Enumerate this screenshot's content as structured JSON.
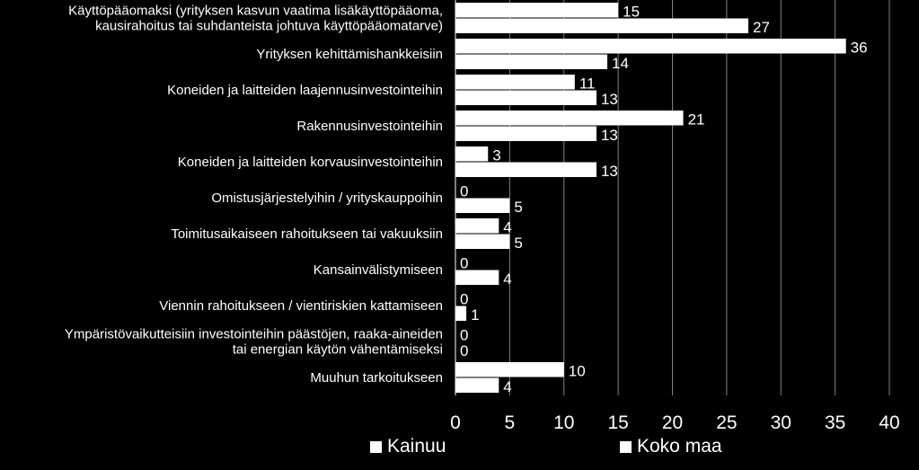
{
  "chart_data": {
    "type": "bar",
    "orientation": "horizontal",
    "categories": [
      "Käyttöpääomaksi (yrityksen kasvun vaatima lisäkäyttöpääoma,\nkausirahoitus tai suhdanteista johtuva käyttöpääomatarve)",
      "Yrityksen kehittämishankkeisiin",
      "Koneiden ja laitteiden laajennusinvestointeihin",
      "Rakennusinvestointeihin",
      "Koneiden ja laitteiden korvausinvestointeihin",
      "Omistusjärjestelyihin / yrityskauppoihin",
      "Toimitusaikaiseen rahoitukseen tai vakuuksiin",
      "Kansainvälistymiseen",
      "Viennin rahoitukseen / vientiriskien kattamiseen",
      "Ympäristövaikutteisiin investointeihin päästöjen, raaka-aineiden\ntai energian käytön vähentämiseksi",
      "Muuhun tarkoitukseen"
    ],
    "series": [
      {
        "name": "Kainuu",
        "values": [
          15,
          36,
          11,
          21,
          3,
          0,
          4,
          0,
          0,
          0,
          10
        ]
      },
      {
        "name": "Koko maa",
        "values": [
          27,
          14,
          13,
          13,
          13,
          5,
          5,
          4,
          1,
          0,
          4
        ]
      }
    ],
    "xlim": [
      0,
      40
    ],
    "xticks": [
      0,
      5,
      10,
      15,
      20,
      25,
      30,
      35,
      40
    ],
    "grid": "vertical",
    "legend_position": "bottom",
    "colors": {
      "background": "#000000",
      "bars": "#ffffff",
      "text": "#ffffff",
      "grid": "#7f7f7f"
    }
  }
}
